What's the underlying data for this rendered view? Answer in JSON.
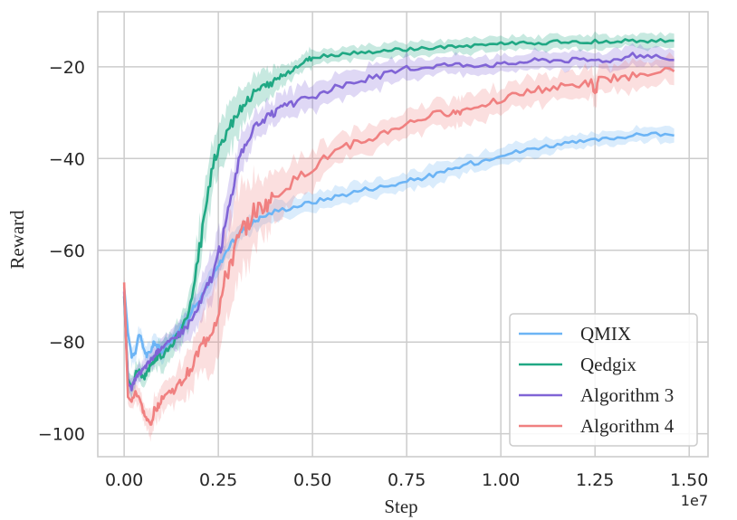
{
  "chart_data": {
    "type": "line",
    "title": "",
    "xlabel": "Step",
    "ylabel": "Reward",
    "x_offset_label": "1e7",
    "xlim": [
      -0.07,
      1.55
    ],
    "ylim": [
      -105,
      -8
    ],
    "xticks": [
      0.0,
      0.25,
      0.5,
      0.75,
      1.0,
      1.25,
      1.5
    ],
    "xtick_labels": [
      "0.00",
      "0.25",
      "0.50",
      "0.75",
      "1.00",
      "1.25",
      "1.50"
    ],
    "yticks": [
      -100,
      -80,
      -60,
      -40,
      -20
    ],
    "ytick_labels": [
      "−100",
      "−80",
      "−60",
      "−40",
      "−20"
    ],
    "grid": true,
    "legend_position": "bottom-right",
    "shaded_band": true,
    "series": [
      {
        "name": "QMIX",
        "color": "#6cb4f5",
        "x": [
          0.0,
          0.01,
          0.02,
          0.03,
          0.04,
          0.05,
          0.06,
          0.07,
          0.08,
          0.09,
          0.1,
          0.12,
          0.14,
          0.16,
          0.18,
          0.2,
          0.22,
          0.24,
          0.26,
          0.28,
          0.3,
          0.32,
          0.34,
          0.36,
          0.4,
          0.45,
          0.5,
          0.55,
          0.6,
          0.65,
          0.7,
          0.75,
          0.8,
          0.85,
          0.9,
          0.95,
          1.0,
          1.05,
          1.1,
          1.15,
          1.2,
          1.25,
          1.3,
          1.35,
          1.4,
          1.46
        ],
        "y": [
          -68,
          -78,
          -83,
          -82,
          -78,
          -81,
          -83,
          -82,
          -80,
          -81,
          -82,
          -80,
          -78,
          -76,
          -73,
          -71,
          -68,
          -65,
          -62,
          -59,
          -57,
          -55,
          -54,
          -53,
          -51.5,
          -50.5,
          -49.5,
          -48.5,
          -47.5,
          -46.5,
          -46,
          -45,
          -44,
          -43,
          -41.5,
          -40.5,
          -39,
          -38.5,
          -37.5,
          -37,
          -36.5,
          -36,
          -35.5,
          -35,
          -34.5,
          -35
        ],
        "band": [
          1.5,
          1.5,
          2,
          2,
          2,
          2,
          2,
          2,
          2,
          2,
          2,
          2,
          2,
          2,
          2,
          2,
          2,
          2,
          2,
          2,
          2,
          2,
          2,
          2,
          2,
          2,
          2,
          2,
          2,
          2,
          2,
          2,
          2,
          2,
          2,
          2,
          2,
          2,
          2,
          1.5,
          1.5,
          1.5,
          1.5,
          1.5,
          1.5,
          1.5
        ]
      },
      {
        "name": "Qedgix",
        "color": "#20a884",
        "x": [
          0.0,
          0.01,
          0.02,
          0.03,
          0.04,
          0.05,
          0.06,
          0.07,
          0.08,
          0.09,
          0.1,
          0.12,
          0.14,
          0.16,
          0.18,
          0.2,
          0.22,
          0.24,
          0.26,
          0.28,
          0.3,
          0.32,
          0.34,
          0.36,
          0.38,
          0.4,
          0.42,
          0.44,
          0.46,
          0.48,
          0.5,
          0.55,
          0.6,
          0.65,
          0.7,
          0.75,
          0.8,
          0.85,
          0.9,
          0.95,
          1.0,
          1.05,
          1.1,
          1.15,
          1.2,
          1.25,
          1.3,
          1.35,
          1.4,
          1.46
        ],
        "y": [
          -70,
          -88,
          -90,
          -87,
          -86,
          -88,
          -87,
          -85,
          -84,
          -83,
          -83,
          -81,
          -79,
          -76,
          -71,
          -60,
          -48,
          -40,
          -36,
          -33,
          -30,
          -28,
          -26,
          -25,
          -24,
          -23,
          -22,
          -21,
          -20,
          -19,
          -18,
          -17.5,
          -17,
          -16.8,
          -16.5,
          -16.2,
          -16,
          -15.8,
          -15.5,
          -15.2,
          -15,
          -14.8,
          -14.8,
          -14.6,
          -14.5,
          -14.5,
          -14.4,
          -14.4,
          -14.3,
          -14.3
        ],
        "band": [
          2,
          2,
          2,
          2,
          2,
          2,
          2,
          2,
          2,
          3,
          3,
          3,
          3,
          3,
          4,
          6,
          6,
          5,
          5,
          5,
          5,
          4,
          4,
          3,
          3,
          3,
          3,
          2,
          2,
          2,
          2,
          1.5,
          1.5,
          1.5,
          1.5,
          1.5,
          1.5,
          1.5,
          1.5,
          1.5,
          1.5,
          1.5,
          1.5,
          1.5,
          1.5,
          1.5,
          1.5,
          1.5,
          1.5,
          1.5
        ]
      },
      {
        "name": "Algorithm 3",
        "color": "#8064d6",
        "x": [
          0.0,
          0.01,
          0.02,
          0.03,
          0.04,
          0.05,
          0.06,
          0.07,
          0.08,
          0.09,
          0.1,
          0.12,
          0.14,
          0.16,
          0.18,
          0.2,
          0.22,
          0.24,
          0.26,
          0.28,
          0.3,
          0.32,
          0.34,
          0.36,
          0.38,
          0.4,
          0.42,
          0.45,
          0.5,
          0.55,
          0.6,
          0.65,
          0.7,
          0.75,
          0.8,
          0.85,
          0.9,
          0.95,
          1.0,
          1.05,
          1.1,
          1.15,
          1.2,
          1.25,
          1.3,
          1.35,
          1.4,
          1.46
        ],
        "y": [
          -69,
          -89,
          -90,
          -88,
          -87,
          -86,
          -85,
          -84,
          -83,
          -82,
          -81,
          -80,
          -79,
          -77,
          -75,
          -72,
          -68,
          -64,
          -58,
          -50,
          -42,
          -37,
          -34,
          -32,
          -31,
          -30,
          -29,
          -28,
          -26.5,
          -25,
          -23.5,
          -22.5,
          -21.5,
          -20.5,
          -20,
          -19.5,
          -19.5,
          -19.5,
          -19.5,
          -19,
          -18.5,
          -18.5,
          -18.5,
          -18.5,
          -18.5,
          -17.5,
          -17.5,
          -18.5
        ],
        "band": [
          2,
          2,
          2,
          2,
          2,
          2,
          2,
          2,
          2,
          2,
          2,
          2,
          3,
          3,
          4,
          4,
          5,
          5,
          5,
          5,
          4,
          4,
          3,
          3,
          3,
          3,
          3,
          3,
          3,
          3,
          2.5,
          2.5,
          2.5,
          2.5,
          2,
          2,
          2,
          2,
          2,
          2,
          2,
          2,
          2,
          2,
          2,
          2,
          2,
          2
        ]
      },
      {
        "name": "Algorithm 4",
        "color": "#f08080",
        "x": [
          0.0,
          0.01,
          0.02,
          0.03,
          0.04,
          0.05,
          0.06,
          0.07,
          0.08,
          0.09,
          0.1,
          0.12,
          0.14,
          0.16,
          0.18,
          0.2,
          0.22,
          0.24,
          0.26,
          0.28,
          0.3,
          0.32,
          0.34,
          0.36,
          0.38,
          0.4,
          0.45,
          0.5,
          0.55,
          0.6,
          0.65,
          0.7,
          0.75,
          0.8,
          0.85,
          0.88,
          0.9,
          0.95,
          1.0,
          1.05,
          1.1,
          1.15,
          1.2,
          1.24,
          1.25,
          1.26,
          1.3,
          1.35,
          1.4,
          1.46
        ],
        "y": [
          -67,
          -92,
          -93,
          -91,
          -92,
          -95,
          -97,
          -98,
          -95,
          -94,
          -92,
          -91,
          -90,
          -88,
          -85,
          -82,
          -79,
          -76,
          -70,
          -63,
          -59,
          -55,
          -52,
          -51,
          -50,
          -48,
          -45,
          -42,
          -39,
          -37,
          -36,
          -34,
          -32.5,
          -31,
          -30,
          -30,
          -29.5,
          -28,
          -27,
          -26,
          -25,
          -24.5,
          -24,
          -23.5,
          -26,
          -23,
          -22.5,
          -22,
          -21,
          -21
        ],
        "band": [
          2,
          2,
          2,
          2,
          2,
          2,
          2,
          3,
          3,
          3,
          3,
          3,
          4,
          4,
          5,
          6,
          7,
          8,
          9,
          10,
          10,
          9,
          8,
          7,
          6,
          5,
          4,
          4,
          3,
          3,
          3,
          3,
          3,
          3,
          3,
          3,
          3,
          3,
          3,
          3,
          3,
          3,
          3,
          3,
          3,
          3,
          3,
          3,
          3,
          3
        ]
      }
    ]
  }
}
